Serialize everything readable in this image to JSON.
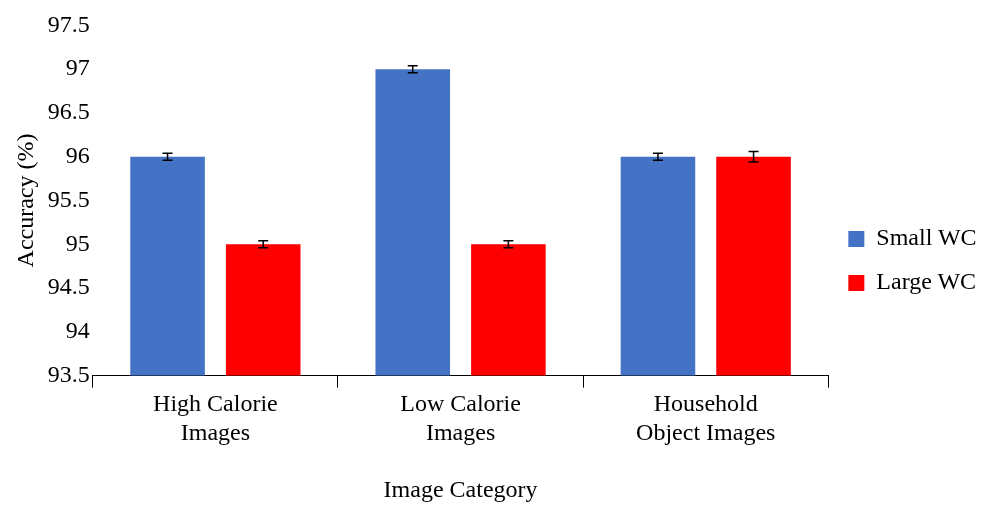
{
  "chart_data": {
    "type": "bar",
    "xlabel": "Image Category",
    "ylabel": "Accuracy (%)",
    "categories": [
      "High Calorie\nImages",
      "Low Calorie\nImages",
      "Household\nObject Images"
    ],
    "series": [
      {
        "name": "Small WC",
        "color": "#4472c4",
        "values": [
          96,
          97,
          96
        ],
        "errors": [
          0.04,
          0.04,
          0.04
        ]
      },
      {
        "name": "Large WC",
        "color": "#ff0000",
        "values": [
          95,
          95,
          96
        ],
        "errors": [
          0.04,
          0.04,
          0.06
        ]
      }
    ],
    "ylim": [
      93.5,
      97.5
    ],
    "yticks": [
      93.5,
      94,
      94.5,
      95,
      95.5,
      96,
      96.5,
      97,
      97.5
    ],
    "grid": false,
    "legend": "right"
  }
}
